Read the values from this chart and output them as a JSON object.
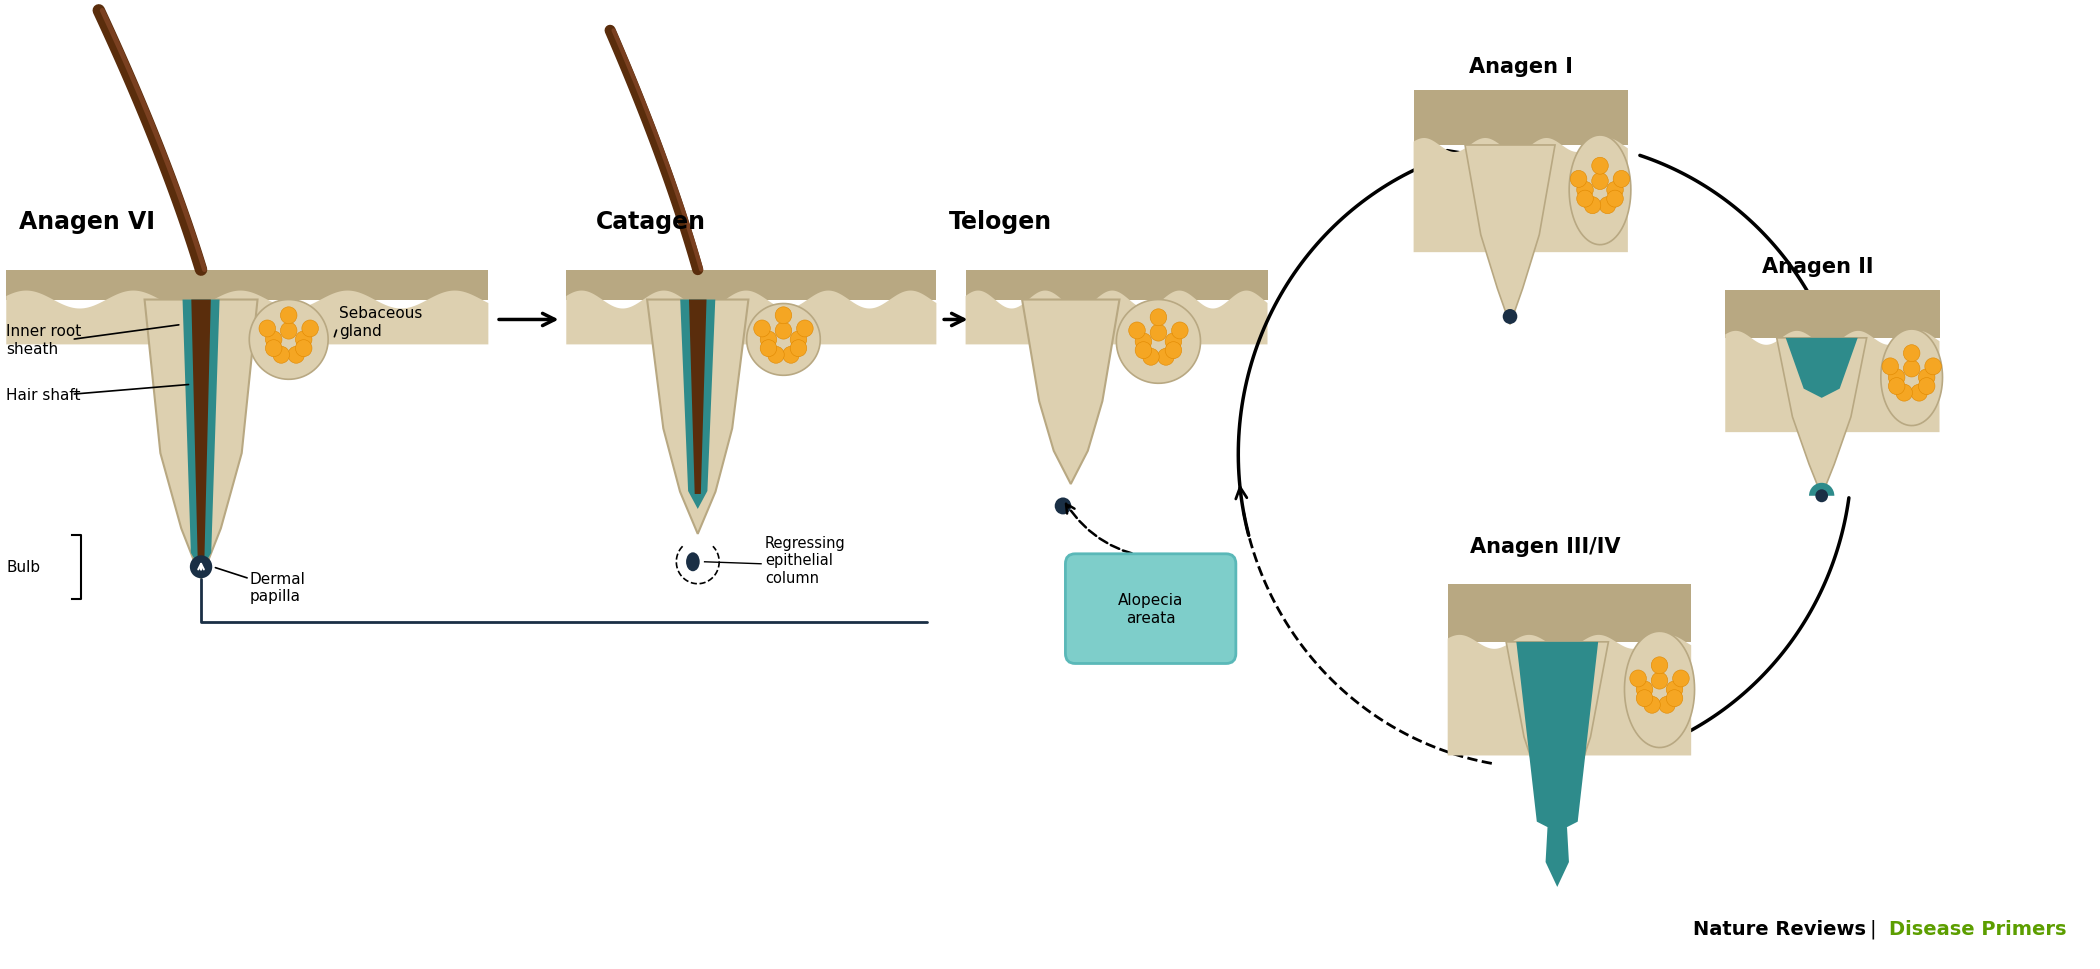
{
  "bg_color": "#ffffff",
  "skin_outer": "#b8a882",
  "skin_inner": "#ddd0b0",
  "skin_lighter": "#e8dcc4",
  "teal": "#2e8b8b",
  "brown_dark": "#5a2d0c",
  "brown_mid": "#7a4020",
  "navy": "#1a2f45",
  "orange": "#f5a623",
  "orange_dark": "#e08800",
  "alopecia_fill": "#7ececa",
  "alopecia_stroke": "#5ab8b8",
  "green_text": "#5c9e00",
  "title_a6": "Anagen VI",
  "title_cat": "Catagen",
  "title_tel": "Telogen",
  "title_a1": "Anagen I",
  "title_a2": "Anagen II",
  "title_a34": "Anagen III/IV",
  "lbl_inner": "Inner root\nsheath",
  "lbl_hair": "Hair shaft",
  "lbl_bulb": "Bulb",
  "lbl_seb": "Sebaceous\ngland",
  "lbl_dermal": "Dermal\npapilla",
  "lbl_regress": "Regressing\nepithelial\ncolumn",
  "lbl_alopecia": "Alopecia\nareata",
  "lbl_nature": "Nature Reviews",
  "lbl_disease": "Disease Primers"
}
